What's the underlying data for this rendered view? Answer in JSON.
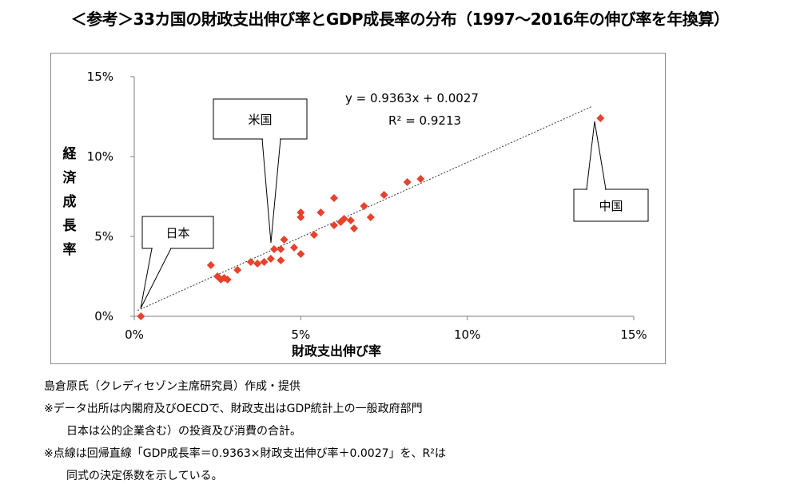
{
  "title": "＜参考＞33カ国の財政支出伸び率とGDP成長率の分布（1997〜2016年の伸び率を年換算）",
  "chart_data": {
    "type": "scatter",
    "xlabel": "財政支出伸び率",
    "ylabel": "経済成長率",
    "xlim": [
      0,
      0.15
    ],
    "ylim": [
      0,
      0.15
    ],
    "x_ticks": [
      "0%",
      "5%",
      "10%",
      "15%"
    ],
    "y_ticks": [
      "0%",
      "5%",
      "10%",
      "15%"
    ],
    "grid": false,
    "marker_color": "#e8412c",
    "trendline": {
      "slope": 0.9363,
      "intercept": 0.0027,
      "style": "dotted"
    },
    "annotations": {
      "equation": "y = 0.9363x + 0.0027",
      "r_squared": "R² = 0.9213",
      "japan": "日本",
      "usa": "米国",
      "china": "中国"
    },
    "points": [
      {
        "x": 0.002,
        "y": 0.0
      },
      {
        "x": 0.023,
        "y": 0.032
      },
      {
        "x": 0.025,
        "y": 0.025
      },
      {
        "x": 0.026,
        "y": 0.023
      },
      {
        "x": 0.027,
        "y": 0.024
      },
      {
        "x": 0.028,
        "y": 0.023
      },
      {
        "x": 0.031,
        "y": 0.029
      },
      {
        "x": 0.035,
        "y": 0.034
      },
      {
        "x": 0.037,
        "y": 0.033
      },
      {
        "x": 0.039,
        "y": 0.034
      },
      {
        "x": 0.041,
        "y": 0.036
      },
      {
        "x": 0.042,
        "y": 0.042
      },
      {
        "x": 0.044,
        "y": 0.035
      },
      {
        "x": 0.044,
        "y": 0.042
      },
      {
        "x": 0.045,
        "y": 0.048
      },
      {
        "x": 0.048,
        "y": 0.043
      },
      {
        "x": 0.05,
        "y": 0.039
      },
      {
        "x": 0.05,
        "y": 0.062
      },
      {
        "x": 0.05,
        "y": 0.065
      },
      {
        "x": 0.054,
        "y": 0.051
      },
      {
        "x": 0.056,
        "y": 0.065
      },
      {
        "x": 0.06,
        "y": 0.057
      },
      {
        "x": 0.06,
        "y": 0.074
      },
      {
        "x": 0.062,
        "y": 0.059
      },
      {
        "x": 0.063,
        "y": 0.061
      },
      {
        "x": 0.065,
        "y": 0.06
      },
      {
        "x": 0.066,
        "y": 0.055
      },
      {
        "x": 0.069,
        "y": 0.069
      },
      {
        "x": 0.071,
        "y": 0.062
      },
      {
        "x": 0.075,
        "y": 0.076
      },
      {
        "x": 0.082,
        "y": 0.084
      },
      {
        "x": 0.086,
        "y": 0.086
      },
      {
        "x": 0.14,
        "y": 0.124
      }
    ]
  },
  "notes": [
    "島倉原氏（クレディセゾン主席研究員）作成・提供",
    "※データ出所は内閣府及びOECDで、財政支出はGDP統計上の一般政府部門",
    "日本は公的企業含む）の投資及び消費の合計。",
    "※点線は回帰直線「GDP成長率＝0.9363×財政支出伸び率＋0.0027」を、R²は",
    "同式の決定係数を示している。"
  ]
}
